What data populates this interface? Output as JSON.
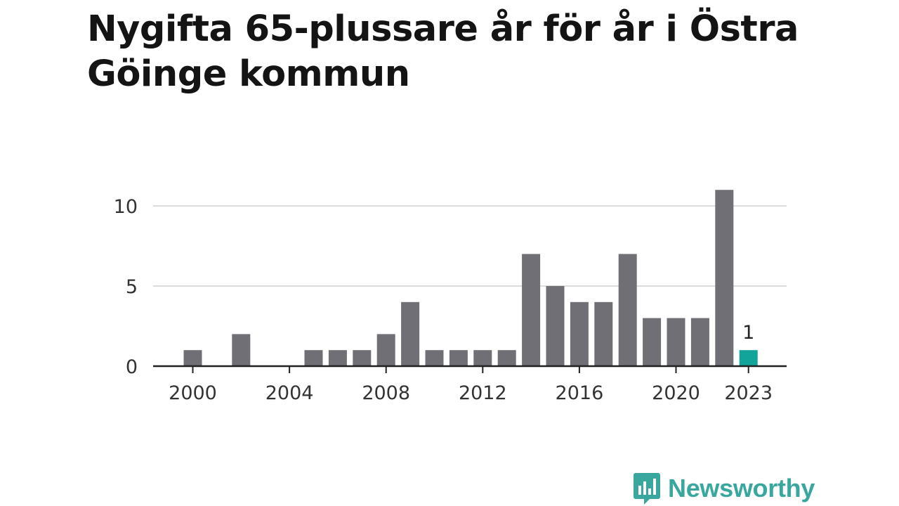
{
  "title": "Nygifta 65-plussare år för år i Östra Göinge kommun",
  "brand": {
    "name": "Newsworthy",
    "icon": "bar-chart-speech-bubble-icon"
  },
  "colors": {
    "bar": "#706f75",
    "highlight": "#12a39a",
    "grid": "#dcdcdc",
    "axis": "#222222"
  },
  "chart_data": {
    "type": "bar",
    "x": [
      2000,
      2001,
      2002,
      2003,
      2004,
      2005,
      2006,
      2007,
      2008,
      2009,
      2010,
      2011,
      2012,
      2013,
      2014,
      2015,
      2016,
      2017,
      2018,
      2019,
      2020,
      2021,
      2022,
      2023
    ],
    "values": [
      1,
      0,
      2,
      0,
      0,
      1,
      1,
      1,
      2,
      4,
      1,
      1,
      1,
      1,
      7,
      5,
      4,
      4,
      7,
      3,
      3,
      3,
      11,
      1
    ],
    "xticks": [
      "2000",
      "2004",
      "2008",
      "2012",
      "2016",
      "2020",
      "2023"
    ],
    "yticks": [
      "0",
      "5",
      "10"
    ],
    "ylim": [
      0,
      11
    ],
    "highlight": {
      "x": 2023,
      "label": "1"
    },
    "grid": true
  }
}
